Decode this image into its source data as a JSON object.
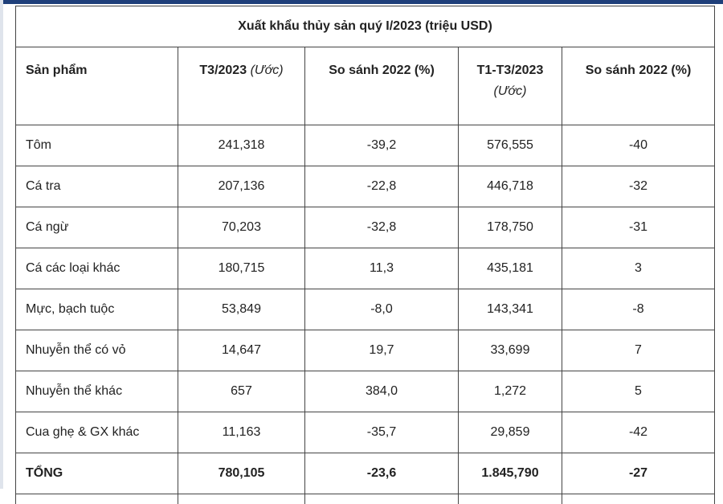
{
  "table": {
    "title": "Xuất khẩu thủy sản quý I/2023 (triệu USD)",
    "headers": [
      {
        "main": "Sản phẩm",
        "note": ""
      },
      {
        "main": "T3/2023",
        "note": "(Ước)"
      },
      {
        "main": "So sánh 2022 (%)",
        "note": ""
      },
      {
        "main": "T1-T3/2023",
        "note": "(Ước)"
      },
      {
        "main": "So sánh 2022 (%)",
        "note": ""
      }
    ],
    "rows": [
      [
        "Tôm",
        "241,318",
        "-39,2",
        "576,555",
        "-40"
      ],
      [
        "Cá tra",
        "207,136",
        "-22,8",
        "446,718",
        "-32"
      ],
      [
        "Cá ngừ",
        "70,203",
        "-32,8",
        "178,750",
        "-31"
      ],
      [
        "Cá các loại khác",
        "180,715",
        "11,3",
        "435,181",
        "3"
      ],
      [
        "Mực, bạch tuộc",
        "53,849",
        "-8,0",
        "143,341",
        "-8"
      ],
      [
        "Nhuyễn thể có vỏ",
        "14,647",
        "19,7",
        "33,699",
        "7"
      ],
      [
        "Nhuyễn thể khác",
        "657",
        "384,0",
        "1,272",
        "5"
      ],
      [
        "Cua ghẹ & GX khác",
        "11,163",
        "-35,7",
        "29,859",
        "-42"
      ]
    ],
    "total": [
      "TỔNG",
      "780,105",
      "-23,6",
      "1.845,790",
      "-27"
    ]
  }
}
